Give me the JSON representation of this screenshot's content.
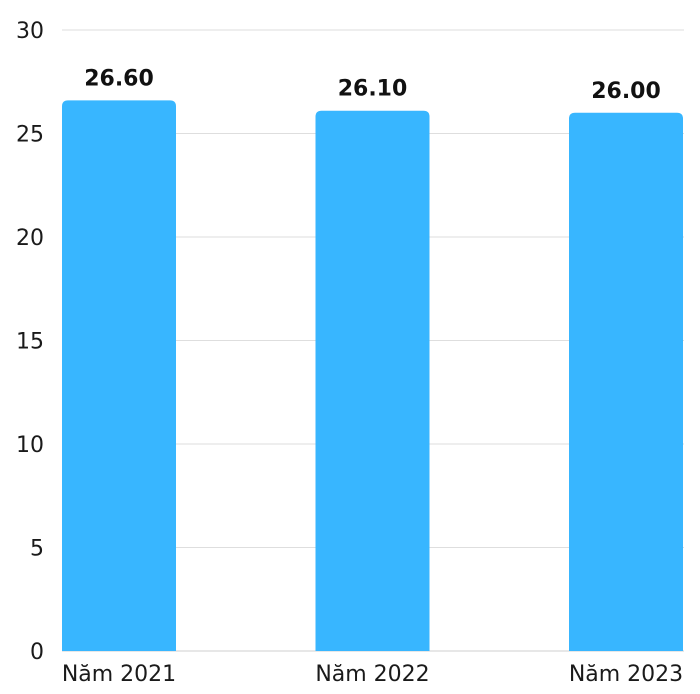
{
  "chart_data": {
    "type": "bar",
    "categories": [
      "Năm 2021",
      "Năm 2022",
      "Năm 2023"
    ],
    "values": [
      26.6,
      26.1,
      26.0
    ],
    "data_labels": [
      "26.60",
      "26.10",
      "26.00"
    ],
    "y_ticks": [
      0,
      5,
      10,
      15,
      20,
      25,
      30
    ],
    "ylim": [
      0,
      30
    ],
    "title": "",
    "xlabel": "",
    "ylabel": "",
    "grid": true,
    "legend": "none",
    "bar_color": "#38b6ff"
  }
}
